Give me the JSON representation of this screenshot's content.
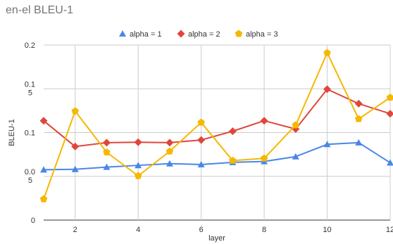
{
  "chart_data": {
    "type": "line",
    "title": "en-el BLEU-1",
    "xlabel": "layer",
    "ylabel": "BLEU-1",
    "x": [
      1,
      2,
      3,
      4,
      5,
      6,
      7,
      8,
      9,
      10,
      11,
      12
    ],
    "x_ticks": [
      "2",
      "4",
      "6",
      "8",
      "10",
      "12"
    ],
    "y_ticks": [
      "0",
      "0.0\n5",
      "0.1",
      "0.1\n5",
      "0.2"
    ],
    "xlim": [
      1,
      12
    ],
    "ylim": [
      0,
      0.2
    ],
    "grid": true,
    "legend_position": "top",
    "series": [
      {
        "name": "alpha = 1",
        "color": "#4a86e8",
        "marker": "triangle",
        "values": [
          0.0575,
          0.058,
          0.0605,
          0.0625,
          0.0645,
          0.0635,
          0.066,
          0.067,
          0.0725,
          0.0865,
          0.0885,
          0.0655
        ]
      },
      {
        "name": "alpha = 2",
        "color": "#e0463b",
        "marker": "diamond",
        "values": [
          0.1135,
          0.084,
          0.0885,
          0.089,
          0.0885,
          0.0915,
          0.1015,
          0.1135,
          0.104,
          0.1495,
          0.133,
          0.1215
        ]
      },
      {
        "name": "alpha = 3",
        "color": "#f5b800",
        "marker": "pentagon",
        "values": [
          0.024,
          0.1245,
          0.0775,
          0.0505,
          0.0785,
          0.1115,
          0.068,
          0.0705,
          0.1085,
          0.191,
          0.1155,
          0.14
        ]
      }
    ]
  }
}
